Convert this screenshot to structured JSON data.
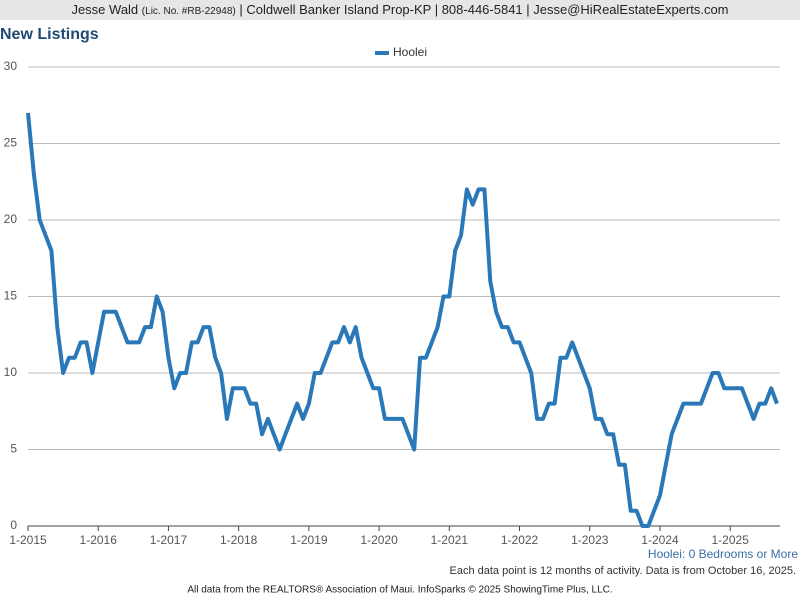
{
  "header": {
    "name": "Jesse Wald",
    "license": "(Lic. No. #RB-22948)",
    "details": "| Coldwell Banker Island Prop-KP | 808-446-5841 | Jesse@HiRealEstateExperts.com"
  },
  "chart_data": {
    "type": "line",
    "title": "New Listings",
    "categories": [
      "1-2015",
      null,
      null,
      null,
      null,
      null,
      null,
      null,
      null,
      null,
      null,
      null,
      "1-2016",
      null,
      null,
      null,
      null,
      null,
      null,
      null,
      null,
      null,
      null,
      null,
      "1-2017",
      null,
      null,
      null,
      null,
      null,
      null,
      null,
      null,
      null,
      null,
      null,
      "1-2018",
      null,
      null,
      null,
      null,
      null,
      null,
      null,
      null,
      null,
      null,
      null,
      "1-2019",
      null,
      null,
      null,
      null,
      null,
      null,
      null,
      null,
      null,
      null,
      null,
      "1-2020",
      null,
      null,
      null,
      null,
      null,
      null,
      null,
      null,
      null,
      null,
      null,
      "1-2021",
      null,
      null,
      null,
      null,
      null,
      null,
      null,
      null,
      null,
      null,
      null,
      "1-2022",
      null,
      null,
      null,
      null,
      null,
      null,
      null,
      null,
      null,
      null,
      null,
      "1-2023",
      null,
      null,
      null,
      null,
      null,
      null,
      null,
      null,
      null,
      null,
      null,
      "1-2024",
      null,
      null,
      null,
      null,
      null,
      null,
      null,
      null,
      null,
      null,
      null,
      "1-2025",
      null,
      null,
      null,
      null,
      null,
      null,
      null,
      null
    ],
    "series": [
      {
        "name": "Hoolei",
        "color": "#2a78b8",
        "values": [
          27,
          23,
          20,
          19,
          18,
          13,
          10,
          11,
          11,
          12,
          12,
          10,
          12,
          14,
          14,
          14,
          13,
          12,
          12,
          12,
          13,
          13,
          15,
          14,
          11,
          9,
          10,
          10,
          12,
          12,
          13,
          13,
          11,
          10,
          7,
          9,
          9,
          9,
          8,
          8,
          6,
          7,
          6,
          5,
          6,
          7,
          8,
          7,
          8,
          10,
          10,
          11,
          12,
          12,
          13,
          12,
          13,
          11,
          10,
          9,
          9,
          7,
          7,
          7,
          7,
          6,
          5,
          11,
          11,
          12,
          13,
          15,
          15,
          18,
          19,
          22,
          21,
          22,
          22,
          16,
          14,
          13,
          13,
          12,
          12,
          11,
          10,
          7,
          7,
          8,
          8,
          11,
          11,
          12,
          11,
          10,
          9,
          7,
          7,
          6,
          6,
          4,
          4,
          1,
          1,
          0,
          0,
          1,
          2,
          4,
          6,
          7,
          8,
          8,
          8,
          8,
          9,
          10,
          10,
          9,
          9,
          9,
          9,
          8,
          7,
          8,
          8,
          9,
          8
        ]
      }
    ],
    "ylim": [
      0,
      30
    ],
    "yticks": [
      0,
      5,
      10,
      15,
      20,
      25,
      30
    ],
    "grid": true,
    "legend": "top",
    "caption": "Hoolei: 0 Bedrooms or More",
    "note": "Each data point is 12 months of activity. Data is from October 16, 2025."
  },
  "footer": "All data from the REALTORS® Association of Maui. InfoSparks © 2025 ShowingTime Plus, LLC."
}
